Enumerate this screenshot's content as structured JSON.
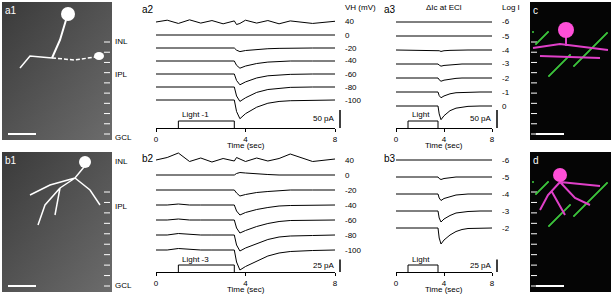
{
  "images": [
    {
      "label": "a1",
      "layers": [
        "INL",
        "IPL",
        "GCL"
      ]
    },
    {
      "label": "b1",
      "layers": [
        "INL",
        "IPL",
        "GCL"
      ]
    },
    {
      "label": "c"
    },
    {
      "label": "d"
    }
  ],
  "chart_data": [
    {
      "label": "a2",
      "type": "line",
      "color": "#000000",
      "tick_labels": "x",
      "row_header": "VH (mV)",
      "x": [
        0,
        0.5,
        1,
        1.5,
        2,
        2.5,
        3,
        3.5,
        3.6,
        3.75,
        4,
        4.5,
        5,
        5.5,
        6,
        7,
        8
      ],
      "xlim": [
        0,
        8
      ],
      "xticks": [
        0,
        4,
        8
      ],
      "x_label": "Time (sec)",
      "ylim": [
        -60,
        15
      ],
      "scale_bar": {
        "value": 50,
        "label": "50 pA"
      },
      "stimulus": {
        "label": "Light -1",
        "on": 1,
        "off": 3.5
      },
      "series": [
        {
          "name": "40",
          "values": [
            0,
            5,
            -4,
            6,
            -3,
            4,
            -5,
            3,
            -7,
            -4,
            5,
            -3,
            4,
            -5,
            3,
            -4,
            2
          ]
        },
        {
          "name": "0",
          "values": [
            0,
            0,
            0,
            0,
            0,
            0,
            0,
            0,
            -1,
            -2,
            -1,
            0,
            0,
            0,
            0,
            0,
            0
          ]
        },
        {
          "name": "-20",
          "values": [
            0,
            0,
            0,
            0,
            0,
            0,
            0,
            0,
            -6,
            -10,
            -7,
            -4,
            -2,
            -1,
            0,
            0,
            0
          ]
        },
        {
          "name": "-40",
          "values": [
            0,
            0,
            0,
            0,
            0,
            0,
            0,
            0,
            -12,
            -20,
            -14,
            -7,
            -3,
            -1,
            0,
            0,
            0
          ]
        },
        {
          "name": "-60",
          "values": [
            0,
            0,
            0,
            0,
            0,
            0,
            0,
            0,
            -18,
            -30,
            -22,
            -11,
            -5,
            -2,
            -1,
            0,
            0
          ]
        },
        {
          "name": "-80",
          "values": [
            0,
            0,
            0,
            0,
            0,
            0,
            0,
            0,
            -25,
            -40,
            -30,
            -15,
            -7,
            -3,
            -1,
            0,
            0
          ]
        },
        {
          "name": "-100",
          "values": [
            0,
            0,
            0,
            0,
            0,
            0,
            0,
            0,
            -32,
            -52,
            -38,
            -20,
            -9,
            -4,
            -2,
            -1,
            0
          ]
        }
      ]
    },
    {
      "label": "a3",
      "type": "line",
      "color": "#000000",
      "tick_labels": "x",
      "title": "ΔIc at ECl",
      "row_header": "Log I",
      "x": [
        0,
        0.5,
        1,
        1.5,
        2,
        2.5,
        3,
        3.5,
        3.6,
        3.75,
        4,
        4.5,
        5,
        5.5,
        6,
        7,
        8
      ],
      "xlim": [
        0,
        8
      ],
      "xticks": [
        0,
        4,
        8
      ],
      "x_label": "Time (sec)",
      "ylim": [
        -45,
        15
      ],
      "scale_bar": {
        "value": 50,
        "label": "50 pA"
      },
      "stimulus": {
        "label": "Light",
        "on": 1,
        "off": 3.5
      },
      "series": [
        {
          "name": "-6",
          "values": [
            0,
            0,
            0,
            0,
            0,
            0,
            0,
            0,
            0,
            -1,
            0,
            0,
            0,
            0,
            0,
            0,
            0
          ]
        },
        {
          "name": "-5",
          "values": [
            0,
            0,
            0,
            0,
            0,
            0,
            0,
            0,
            -1,
            -2,
            -1,
            0,
            0,
            0,
            0,
            0,
            0
          ]
        },
        {
          "name": "-4",
          "values": [
            0,
            0,
            0,
            0,
            0,
            0,
            0,
            0,
            -2,
            -4,
            -2,
            -1,
            0,
            0,
            0,
            0,
            0
          ]
        },
        {
          "name": "-3",
          "values": [
            0,
            0,
            0,
            0,
            0,
            0,
            0,
            0,
            -3,
            -6,
            -4,
            -2,
            -1,
            0,
            0,
            0,
            0
          ]
        },
        {
          "name": "-2",
          "values": [
            0,
            0,
            0,
            0,
            0,
            0,
            0,
            0,
            -5,
            -9,
            -6,
            -3,
            -1,
            0,
            0,
            0,
            0
          ]
        },
        {
          "name": "-1",
          "values": [
            0,
            0,
            0,
            0,
            0,
            0,
            0,
            0,
            -10,
            -16,
            -11,
            -5,
            -2,
            -1,
            0,
            0,
            0
          ]
        },
        {
          "name": "0",
          "values": [
            0,
            0,
            0,
            0,
            0,
            0,
            0,
            0,
            -22,
            -38,
            -27,
            -13,
            -6,
            -3,
            -1,
            0,
            0
          ]
        }
      ]
    },
    {
      "label": "b2",
      "type": "line",
      "color": "#000000",
      "tick_labels": "x",
      "x": [
        0,
        0.5,
        1,
        1.5,
        2,
        2.5,
        3,
        3.5,
        3.6,
        3.75,
        4,
        4.5,
        5,
        5.5,
        6,
        7,
        8
      ],
      "xlim": [
        0,
        8
      ],
      "xticks": [
        0,
        4,
        8
      ],
      "x_label": "Time (sec)",
      "ylim": [
        -50,
        20
      ],
      "scale_bar": {
        "value": 25,
        "label": "25 pA"
      },
      "stimulus": {
        "label": "Light -3",
        "on": 1,
        "off": 3.5
      },
      "series": [
        {
          "name": "40",
          "values": [
            0,
            5,
            14,
            -3,
            4,
            -4,
            3,
            -2,
            5,
            2,
            -3,
            4,
            -2,
            3,
            12,
            -3,
            2
          ]
        },
        {
          "name": "0",
          "values": [
            0,
            0,
            0,
            0,
            0,
            0,
            0,
            0,
            3,
            5,
            4,
            2,
            1,
            0,
            0,
            0,
            0
          ]
        },
        {
          "name": "-20",
          "values": [
            0,
            0,
            1,
            0,
            0,
            0,
            0,
            0,
            -6,
            -12,
            -9,
            -5,
            -3,
            -1,
            0,
            0,
            0
          ]
        },
        {
          "name": "-40",
          "values": [
            0,
            0,
            2,
            0,
            0,
            0,
            0,
            0,
            -12,
            -20,
            -15,
            -9,
            -5,
            -2,
            -1,
            0,
            0
          ]
        },
        {
          "name": "-60",
          "values": [
            0,
            0,
            2,
            0,
            0,
            0,
            0,
            0,
            -16,
            -26,
            -21,
            -13,
            -7,
            -3,
            -1,
            0,
            0
          ]
        },
        {
          "name": "-80",
          "values": [
            0,
            0,
            3,
            1,
            0,
            0,
            0,
            0,
            -20,
            -32,
            -26,
            -17,
            -9,
            -4,
            -2,
            -1,
            0
          ]
        },
        {
          "name": "-100",
          "values": [
            0,
            0,
            3,
            1,
            0,
            0,
            0,
            0,
            -24,
            -40,
            -33,
            -22,
            -12,
            -6,
            -3,
            -1,
            0
          ]
        }
      ]
    },
    {
      "label": "b3",
      "type": "line",
      "color": "#000000",
      "tick_labels": "x",
      "x": [
        0,
        0.5,
        1,
        1.5,
        2,
        2.5,
        3,
        3.5,
        3.6,
        3.75,
        4,
        4.5,
        5,
        5.5,
        6,
        7,
        8
      ],
      "xlim": [
        0,
        8
      ],
      "xticks": [
        0,
        4,
        8
      ],
      "x_label": "Time (sec)",
      "ylim": [
        -40,
        10
      ],
      "scale_bar": {
        "value": 25,
        "label": "25 pA"
      },
      "stimulus": {
        "label": "Light",
        "on": 1,
        "off": 3.5
      },
      "series": [
        {
          "name": "-6",
          "values": [
            0,
            0,
            0,
            0,
            0,
            0,
            0,
            0,
            0,
            0,
            0,
            0,
            0,
            0,
            0,
            0,
            0
          ]
        },
        {
          "name": "-5",
          "values": [
            0,
            0,
            0,
            0,
            0,
            0,
            0,
            0,
            -3,
            -5,
            -3,
            -1,
            0,
            0,
            0,
            0,
            0
          ]
        },
        {
          "name": "-4",
          "values": [
            0,
            0,
            0,
            0,
            0,
            0,
            0,
            0,
            -8,
            -13,
            -9,
            -5,
            -2,
            -1,
            0,
            0,
            0
          ]
        },
        {
          "name": "-3",
          "values": [
            0,
            0,
            0,
            0,
            0,
            0,
            0,
            0,
            -14,
            -22,
            -16,
            -9,
            -4,
            -2,
            -1,
            0,
            0
          ]
        },
        {
          "name": "-2",
          "values": [
            0,
            0,
            0,
            0,
            0,
            0,
            0,
            0,
            -20,
            -32,
            -24,
            -14,
            -7,
            -3,
            -1,
            0,
            0
          ]
        }
      ]
    }
  ]
}
